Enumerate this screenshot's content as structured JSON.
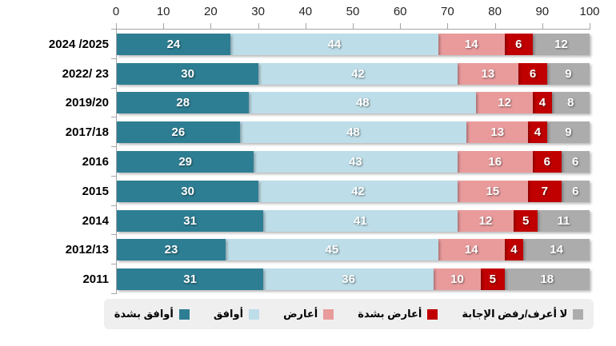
{
  "chart_data": {
    "type": "bar",
    "orientation": "horizontal",
    "stacked": true,
    "categories": [
      "2024 /2025",
      "2022/ 23",
      "2019/20",
      "2017/18",
      "2016",
      "2015",
      "2014",
      "2012/13",
      "2011"
    ],
    "series": [
      {
        "name": "أوافق بشدة",
        "color": "#2e7e93",
        "values": [
          24,
          30,
          28,
          26,
          29,
          30,
          31,
          23,
          31
        ]
      },
      {
        "name": "أوافق",
        "color": "#bddde8",
        "values": [
          44,
          42,
          48,
          48,
          43,
          42,
          41,
          45,
          36
        ]
      },
      {
        "name": "أعارض",
        "color": "#e99b9c",
        "values": [
          14,
          13,
          12,
          13,
          16,
          15,
          12,
          14,
          10
        ]
      },
      {
        "name": "أعارض بشدة",
        "color": "#c00000",
        "values": [
          6,
          6,
          4,
          4,
          6,
          7,
          5,
          4,
          5
        ]
      },
      {
        "name": "لا أعرف/رفض الإجابة",
        "color": "#acacac",
        "values": [
          12,
          9,
          8,
          9,
          6,
          6,
          11,
          14,
          18
        ]
      }
    ],
    "xlabel": "",
    "ylabel": "",
    "xlim": [
      0,
      100
    ],
    "x_ticks": [
      0,
      10,
      20,
      30,
      40,
      50,
      60,
      70,
      80,
      90,
      100
    ],
    "legend_position": "bottom",
    "value_labels": "inside-white",
    "axis_color": "#a6a6a6",
    "legend_bg": "#efefef"
  }
}
